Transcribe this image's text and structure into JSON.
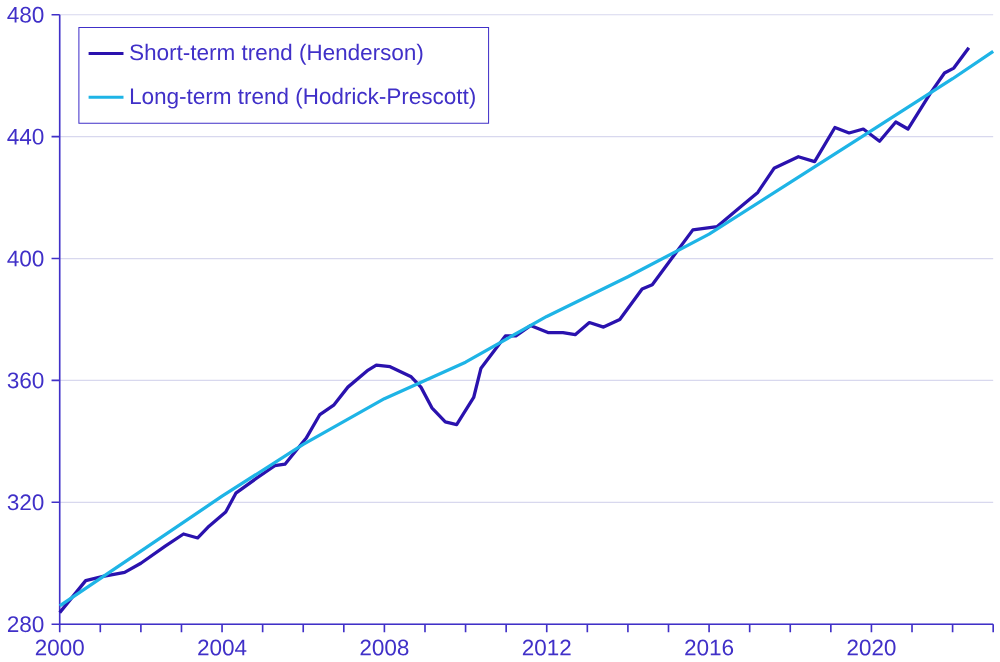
{
  "chart_data": {
    "type": "line",
    "xlim": [
      2000,
      2023
    ],
    "ylim": [
      280,
      480
    ],
    "yticks": [
      280,
      320,
      360,
      400,
      440,
      480
    ],
    "xticks": [
      2000,
      {
        "value": 2001,
        "label": null
      },
      {
        "value": 2002,
        "label": null
      },
      {
        "value": 2003,
        "label": null
      },
      2004,
      {
        "value": 2005,
        "label": null
      },
      {
        "value": 2006,
        "label": null
      },
      {
        "value": 2007,
        "label": null
      },
      2008,
      {
        "value": 2009,
        "label": null
      },
      {
        "value": 2010,
        "label": null
      },
      {
        "value": 2011,
        "label": null
      },
      2012,
      {
        "value": 2013,
        "label": null
      },
      {
        "value": 2014,
        "label": null
      },
      {
        "value": 2015,
        "label": null
      },
      2016,
      {
        "value": 2017,
        "label": null
      },
      {
        "value": 2018,
        "label": null
      },
      {
        "value": 2019,
        "label": null
      },
      2020,
      {
        "value": 2021,
        "label": null
      },
      {
        "value": 2022,
        "label": null
      },
      {
        "value": 2023,
        "label": null
      }
    ],
    "grid": "y",
    "legend": "top left",
    "marker": "none",
    "line_style": "solid",
    "series": [
      {
        "name": "Short-term trend (Henderson)",
        "color": "#2a12ae",
        "x": [
          2000.0,
          2000.64,
          2001.07,
          2001.6,
          2002.0,
          2002.6,
          2003.05,
          2003.4,
          2003.65,
          2004.09,
          2004.34,
          2004.86,
          2005.3,
          2005.55,
          2006.07,
          2006.41,
          2006.76,
          2007.1,
          2007.6,
          2007.8,
          2008.14,
          2008.66,
          2008.9,
          2009.17,
          2009.5,
          2009.78,
          2010.2,
          2010.38,
          2010.98,
          2011.24,
          2011.6,
          2012.03,
          2012.4,
          2012.7,
          2013.05,
          2013.4,
          2013.8,
          2014.35,
          2014.6,
          2015.1,
          2015.6,
          2016.2,
          2016.8,
          2017.2,
          2017.6,
          2018.2,
          2018.6,
          2019.1,
          2019.45,
          2019.8,
          2020.2,
          2020.6,
          2020.9,
          2021.45,
          2021.8,
          2022.03,
          2022.4
        ],
        "values": [
          283.8,
          294.3,
          295.7,
          297,
          300,
          305.6,
          309.6,
          308.3,
          311.8,
          316.8,
          323,
          328,
          332,
          332.5,
          341,
          348.8,
          352,
          357.8,
          363.4,
          365,
          364.5,
          361.2,
          357.8,
          351,
          346.4,
          345.5,
          354.4,
          364,
          374.6,
          374.6,
          378,
          375.7,
          375.7,
          375,
          379,
          377.5,
          380,
          390,
          391.4,
          400.4,
          409.4,
          410.5,
          417.2,
          421.7,
          429.6,
          433.4,
          431.8,
          443,
          441.2,
          442.5,
          438.5,
          444.8,
          442.5,
          454.2,
          460.9,
          462.5,
          469.2
        ]
      },
      {
        "name": "Long-term trend (Hodrick-Prescott)",
        "color": "#1eb4e6",
        "x": [
          2000,
          2002,
          2004,
          2006,
          2008,
          2010,
          2012,
          2014,
          2016,
          2018,
          2020,
          2022,
          2023
        ],
        "values": [
          286,
          304,
          322,
          339,
          354,
          366,
          381,
          394,
          408,
          425,
          442,
          459,
          468
        ]
      }
    ]
  }
}
